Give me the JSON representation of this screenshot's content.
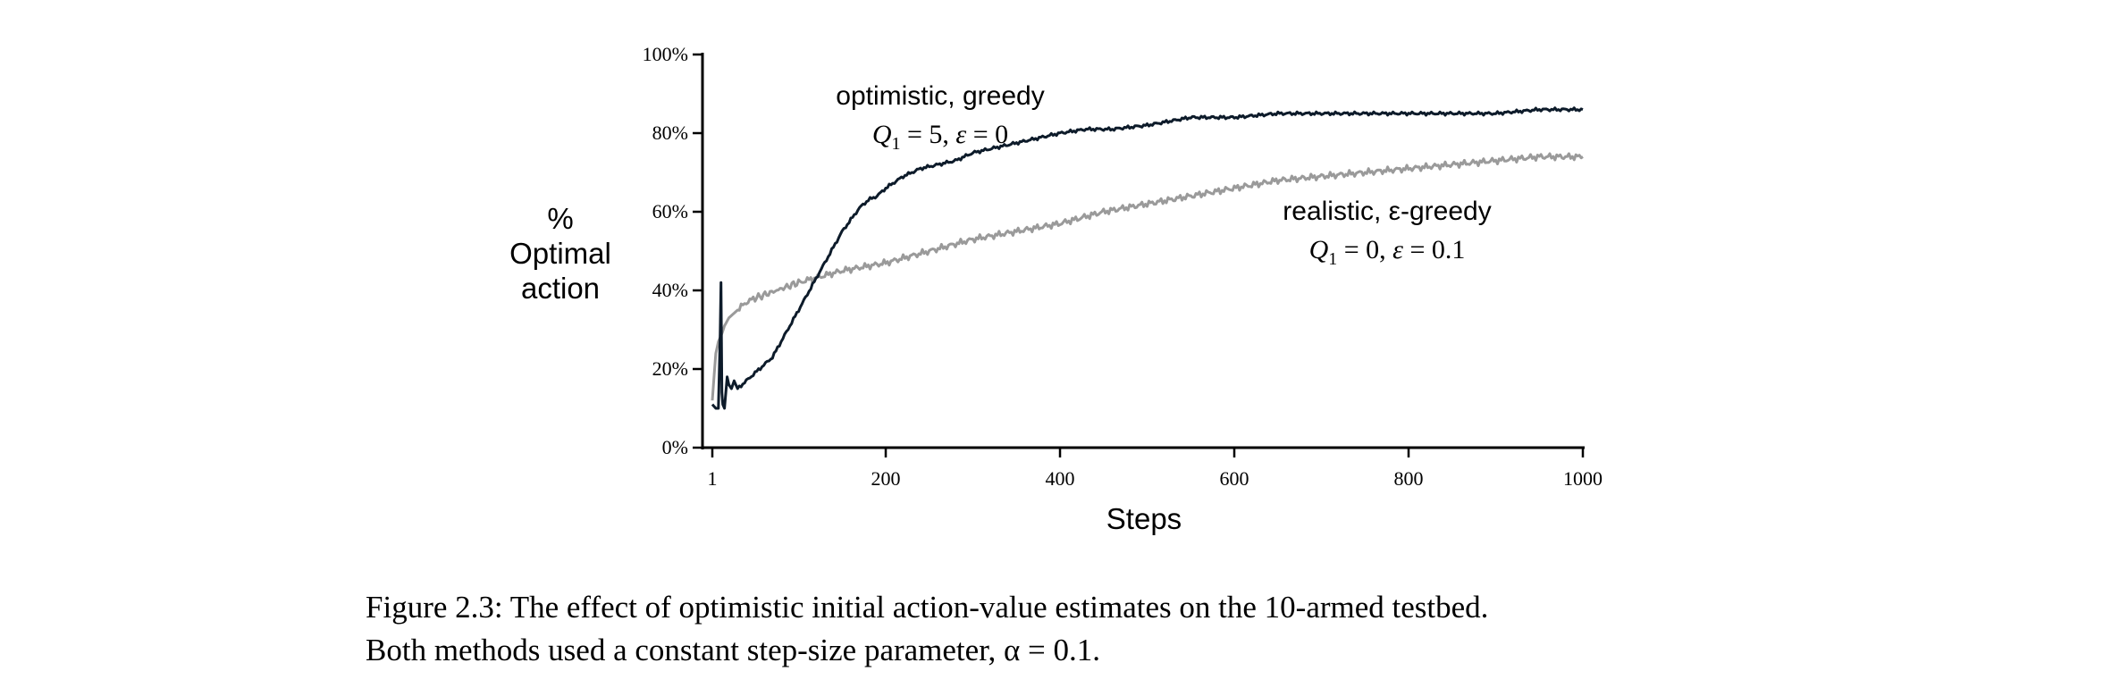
{
  "chart_data": {
    "type": "line",
    "xlabel": "Steps",
    "ylabel_lines": [
      "%",
      "Optimal",
      "action"
    ],
    "xlim": [
      1,
      1000
    ],
    "ylim": [
      0,
      100
    ],
    "x_ticks": [
      1,
      200,
      400,
      600,
      800,
      1000
    ],
    "y_ticks": [
      0,
      20,
      40,
      60,
      80,
      100
    ],
    "y_tick_labels": [
      "0%",
      "20%",
      "40%",
      "60%",
      "80%",
      "100%"
    ],
    "series": [
      {
        "name": "optimistic, greedy",
        "param_parts": [
          "Q",
          "1",
          " = 5,  ",
          "ε",
          " = 0"
        ],
        "color": "#0d1b2a",
        "x": [
          1,
          5,
          8,
          10,
          11,
          12,
          13,
          15,
          18,
          20,
          23,
          26,
          30,
          40,
          50,
          60,
          70,
          80,
          90,
          100,
          110,
          120,
          130,
          140,
          150,
          160,
          170,
          180,
          190,
          200,
          220,
          240,
          260,
          280,
          300,
          320,
          340,
          360,
          380,
          400,
          430,
          460,
          500,
          550,
          600,
          650,
          700,
          750,
          800,
          850,
          880,
          900,
          950,
          1000
        ],
        "y": [
          11,
          10,
          10,
          29,
          42,
          14,
          11,
          10,
          18,
          16,
          15,
          17,
          15,
          17,
          19,
          21,
          23,
          27,
          31,
          35,
          39,
          43,
          47,
          51,
          55,
          58,
          61,
          63,
          64,
          66,
          69,
          71,
          72,
          73,
          75,
          76,
          77,
          78,
          79,
          80,
          81,
          81,
          82,
          84,
          84,
          85,
          85,
          85,
          85,
          85,
          85,
          85,
          86,
          86
        ]
      },
      {
        "name": "realistic, ε-greedy",
        "param_parts": [
          "Q",
          "1",
          " = 0,  ",
          "ε",
          " = 0.1"
        ],
        "color": "#9a9a9a",
        "x": [
          1,
          3,
          5,
          8,
          10,
          12,
          15,
          20,
          30,
          40,
          50,
          75,
          100,
          150,
          200,
          250,
          300,
          350,
          400,
          450,
          500,
          550,
          600,
          650,
          700,
          750,
          800,
          850,
          900,
          950,
          1000
        ],
        "y": [
          12,
          18,
          24,
          27,
          28,
          29,
          31,
          33,
          35,
          37,
          38,
          40,
          42,
          45,
          47,
          50,
          53,
          55,
          57,
          60,
          62,
          64,
          66,
          68,
          69,
          70,
          71,
          72,
          73,
          74,
          74
        ]
      }
    ]
  },
  "caption": {
    "line1": "Figure 2.3:  The effect of optimistic initial action-value estimates on the 10-armed testbed.",
    "line2": "Both methods used a constant step-size parameter, α = 0.1."
  }
}
